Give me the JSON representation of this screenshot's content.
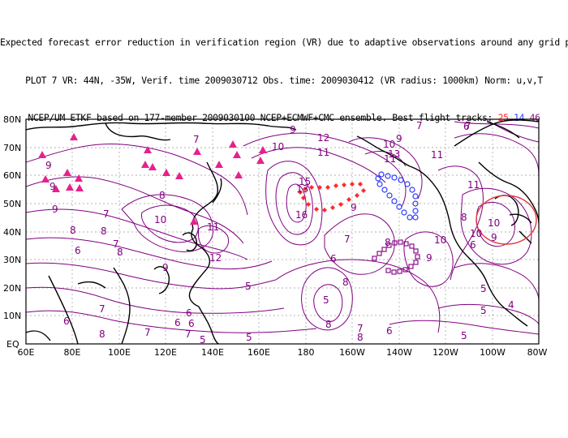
{
  "header": {
    "line1": "Expected forecast error reduction in verification region (VR) due to adaptive observations around any grid point.",
    "line2": "PLOT 7 VR: 44N, -35W, Verif. time 2009030712 Obs. time: 2009030412 (VR radius: 1000km) Norm: u,v,T",
    "line3_prefix": "NCEP/UM ETKF based on 177-member 2009030100 NCEP+ECMWF+CMC ensemble. Best flight tracks: ",
    "track_a": "25",
    "track_b": "14",
    "track_c": "46"
  },
  "map": {
    "lon_labels": [
      "60E",
      "80E",
      "100E",
      "120E",
      "140E",
      "160E",
      "180",
      "160W",
      "140W",
      "120W",
      "100W",
      "80W"
    ],
    "lat_labels": [
      "80N",
      "70N",
      "60N",
      "50N",
      "40N",
      "30N",
      "20N",
      "10N",
      "EQ"
    ],
    "contour_labels": [
      "9",
      "8",
      "7",
      "8",
      "9",
      "10",
      "11",
      "12",
      "13",
      "15",
      "16",
      "7",
      "6",
      "5",
      "9",
      "7",
      "6",
      "7",
      "8",
      "9",
      "8",
      "7",
      "10",
      "9",
      "11",
      "12",
      "10",
      "11",
      "13",
      "9",
      "7",
      "6",
      "5",
      "8",
      "9",
      "10",
      "11",
      "7",
      "6",
      "5",
      "10",
      "11",
      "8",
      "9",
      "10",
      "6",
      "5",
      "8",
      "9",
      "7",
      "6",
      "5",
      "6",
      "8",
      "8",
      "7",
      "7",
      "6",
      "6",
      "5",
      "5",
      "4",
      "8"
    ],
    "colors": {
      "contour": "#800080",
      "coast": "#000000",
      "triangles": "#e6218c",
      "track_red": "#ff2a2a",
      "track_blue": "#2a3aff",
      "track_purple": "#8b0f8b",
      "circle": "#e23b3b"
    }
  }
}
